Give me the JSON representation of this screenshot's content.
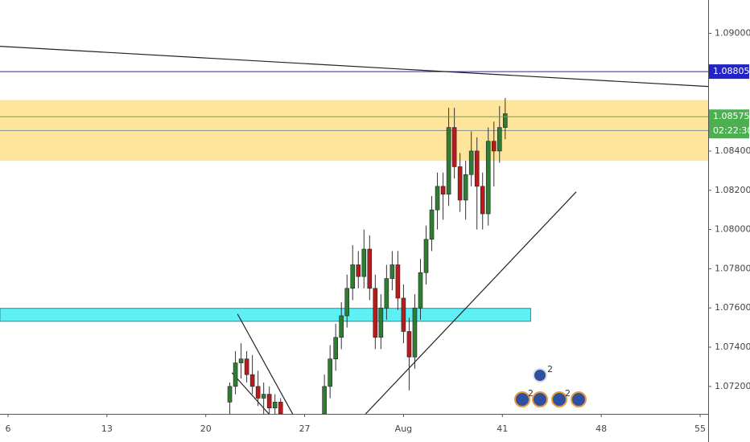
{
  "chart_data": {
    "type": "candlestick",
    "xlim": [
      5.43,
      55.57
    ],
    "ylim": [
      1.0706,
      1.0917
    ],
    "xticks": [
      6,
      13,
      20,
      27,
      {
        "value": 34,
        "label": "Aug"
      },
      41,
      48,
      55
    ],
    "yticks": [
      {
        "value": 1.09,
        "label": "1.09000"
      },
      {
        "value": 1.084,
        "label": "1.08400"
      },
      {
        "value": 1.082,
        "label": "1.08200"
      },
      {
        "value": 1.08,
        "label": "1.08000"
      },
      {
        "value": 1.078,
        "label": "1.07800"
      },
      {
        "value": 1.076,
        "label": "1.07600"
      },
      {
        "value": 1.074,
        "label": "1.07400"
      },
      {
        "value": 1.072,
        "label": "1.07200"
      }
    ],
    "up_color": "#2e7d32",
    "down_color": "#b71c1c",
    "series": [
      {
        "x": [
          21.7,
          22.1,
          22.5,
          22.9,
          23.3,
          23.7,
          24.1,
          24.5,
          24.9,
          25.3,
          28.4,
          28.8,
          29.2,
          29.6,
          30.0,
          30.4,
          30.8,
          31.2,
          31.6,
          32.0,
          32.4,
          32.8,
          33.2,
          33.6,
          34.0,
          34.4,
          34.8,
          35.2,
          35.6,
          36.0,
          36.4,
          36.8,
          37.2,
          37.6,
          38.0,
          38.4,
          38.8,
          39.2,
          39.6,
          40.0,
          40.4,
          40.8,
          41.2
        ],
        "open": [
          1.0712,
          1.072,
          1.0732,
          1.0734,
          1.0726,
          1.072,
          1.0714,
          1.0716,
          1.0709,
          1.0712,
          1.0706,
          1.072,
          1.0734,
          1.0745,
          1.0756,
          1.077,
          1.0782,
          1.0776,
          1.079,
          1.077,
          1.0745,
          1.076,
          1.0775,
          1.0782,
          1.0765,
          1.0748,
          1.0735,
          1.076,
          1.0778,
          1.0795,
          1.081,
          1.0822,
          1.0818,
          1.0852,
          1.0832,
          1.0815,
          1.0828,
          1.084,
          1.0822,
          1.0808,
          1.0845,
          1.084,
          1.0852
        ],
        "high": [
          1.0722,
          1.0738,
          1.0742,
          1.0738,
          1.0736,
          1.0728,
          1.0722,
          1.072,
          1.0716,
          1.0714,
          1.0726,
          1.0741,
          1.0752,
          1.0763,
          1.0777,
          1.0792,
          1.0789,
          1.08,
          1.0797,
          1.0777,
          1.0767,
          1.0782,
          1.0789,
          1.0789,
          1.0772,
          1.0755,
          1.0767,
          1.0785,
          1.0802,
          1.0817,
          1.0829,
          1.0829,
          1.0862,
          1.0862,
          1.0839,
          1.0835,
          1.085,
          1.0847,
          1.0829,
          1.0852,
          1.0855,
          1.0863,
          1.0867
        ],
        "low": [
          1.0706,
          1.0716,
          1.0724,
          1.0722,
          1.0716,
          1.071,
          1.0706,
          1.0706,
          1.0704,
          1.0704,
          1.07,
          1.0714,
          1.0728,
          1.0739,
          1.075,
          1.0764,
          1.077,
          1.077,
          1.0764,
          1.0739,
          1.0739,
          1.0754,
          1.0769,
          1.0759,
          1.0742,
          1.0718,
          1.0729,
          1.0754,
          1.0772,
          1.0789,
          1.08,
          1.0805,
          1.0812,
          1.0826,
          1.0809,
          1.0805,
          1.0822,
          1.08,
          1.08,
          1.0802,
          1.0822,
          1.0834,
          1.0846
        ],
        "close": [
          1.072,
          1.0732,
          1.0734,
          1.0726,
          1.072,
          1.0714,
          1.0716,
          1.0709,
          1.0712,
          1.0706,
          1.072,
          1.0734,
          1.0745,
          1.0756,
          1.077,
          1.0782,
          1.0776,
          1.079,
          1.077,
          1.0745,
          1.076,
          1.0775,
          1.0782,
          1.0765,
          1.0748,
          1.0735,
          1.076,
          1.0778,
          1.0795,
          1.081,
          1.0822,
          1.0818,
          1.0852,
          1.0832,
          1.0815,
          1.0828,
          1.084,
          1.0822,
          1.0808,
          1.0845,
          1.084,
          1.0852,
          1.0859
        ]
      }
    ],
    "zones": [
      {
        "y": [
          1.0835,
          1.0866
        ],
        "color": "#ffe49c"
      },
      {
        "y": [
          1.07532,
          1.07598
        ],
        "x": [
          5.43,
          43.0
        ],
        "color": "#5ff0f5"
      }
    ],
    "trendlines": [
      {
        "x": [
          5.43,
          55.57
        ],
        "y": [
          1.08934,
          1.08729
        ],
        "color": "#222222"
      },
      {
        "x": [
          31.28,
          46.23
        ],
        "y": [
          1.07057,
          1.08192
        ],
        "color": "#222222"
      },
      {
        "x": [
          22.25,
          26.17
        ],
        "y": [
          1.07569,
          1.07057
        ],
        "color": "#222222"
      },
      {
        "x": [
          21.85,
          24.46
        ],
        "y": [
          1.0727,
          1.0706
        ],
        "color": "#222222"
      }
    ],
    "hlines": [
      {
        "value": 1.08504,
        "color": "#8a9a8a"
      }
    ],
    "level": {
      "value": 1.08805,
      "label": "1.08805",
      "color": "#2323c8"
    },
    "price": {
      "value": 1.08575,
      "label": "1.08575",
      "color": "#4caf50"
    },
    "countdown": "02:22:30",
    "events": [
      "2",
      "2",
      "2"
    ]
  }
}
